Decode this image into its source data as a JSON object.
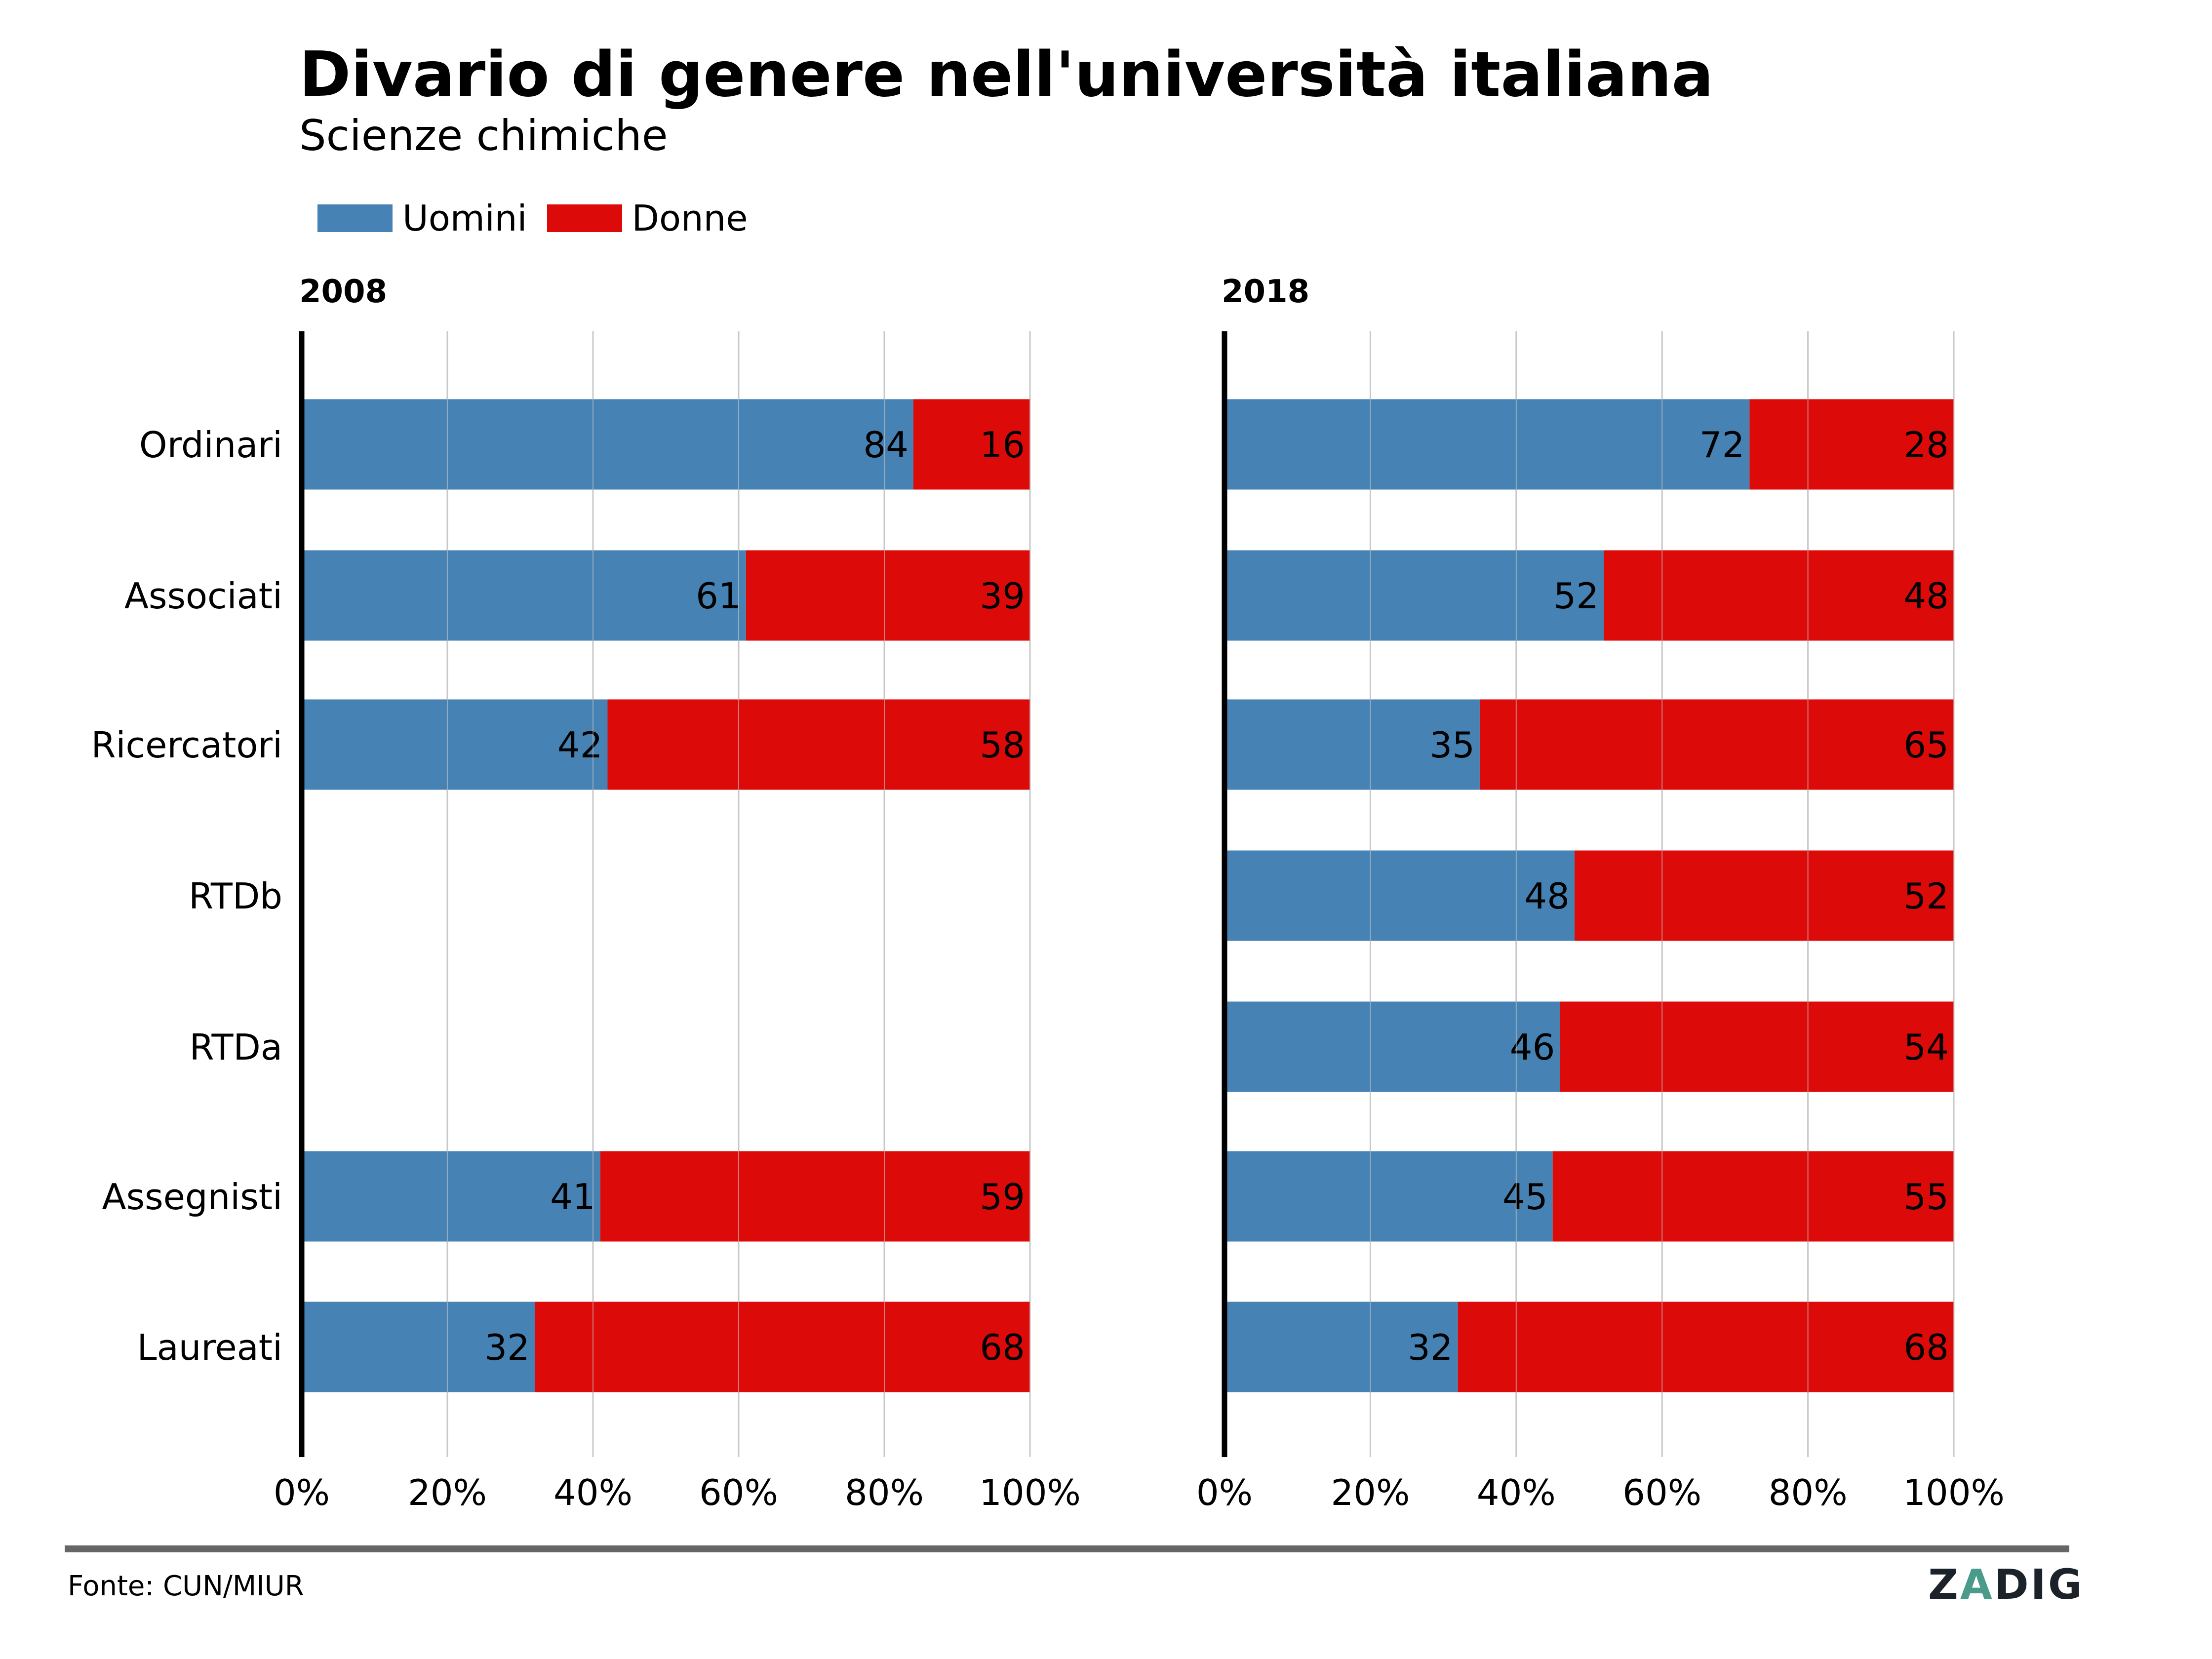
{
  "title": "Divario di genere nell'università italiana",
  "subtitle": "Scienze chimiche",
  "legend": [
    {
      "label": "Uomini",
      "color": "#4682b4"
    },
    {
      "label": "Donne",
      "color": "#dd0a0a"
    }
  ],
  "footer": {
    "source": "Fonte: CUN/MIUR",
    "logo_left": "Z",
    "logo_mid": "A",
    "logo_right": "DIG"
  },
  "chart_data": [
    {
      "type": "bar",
      "orientation": "horizontal-stacked-100",
      "title": "2008",
      "categories": [
        "Ordinari",
        "Associati",
        "Ricercatori",
        "RTDb",
        "RTDa",
        "Assegnisti",
        "Laureati"
      ],
      "series": [
        {
          "name": "Uomini",
          "color": "#4682b4",
          "values": [
            84,
            61,
            42,
            null,
            null,
            41,
            32
          ]
        },
        {
          "name": "Donne",
          "color": "#dd0a0a",
          "values": [
            16,
            39,
            58,
            null,
            null,
            59,
            68
          ]
        }
      ],
      "xlim": [
        0,
        100
      ],
      "xticks": [
        "0%",
        "20%",
        "40%",
        "60%",
        "80%",
        "100%"
      ],
      "grid": true
    },
    {
      "type": "bar",
      "orientation": "horizontal-stacked-100",
      "title": "2018",
      "categories": [
        "Ordinari",
        "Associati",
        "Ricercatori",
        "RTDb",
        "RTDa",
        "Assegnisti",
        "Laureati"
      ],
      "series": [
        {
          "name": "Uomini",
          "color": "#4682b4",
          "values": [
            72,
            52,
            35,
            48,
            46,
            45,
            32
          ]
        },
        {
          "name": "Donne",
          "color": "#dd0a0a",
          "values": [
            28,
            48,
            65,
            52,
            54,
            55,
            68
          ]
        }
      ],
      "xlim": [
        0,
        100
      ],
      "xticks": [
        "0%",
        "20%",
        "40%",
        "60%",
        "80%",
        "100%"
      ],
      "grid": true
    }
  ]
}
